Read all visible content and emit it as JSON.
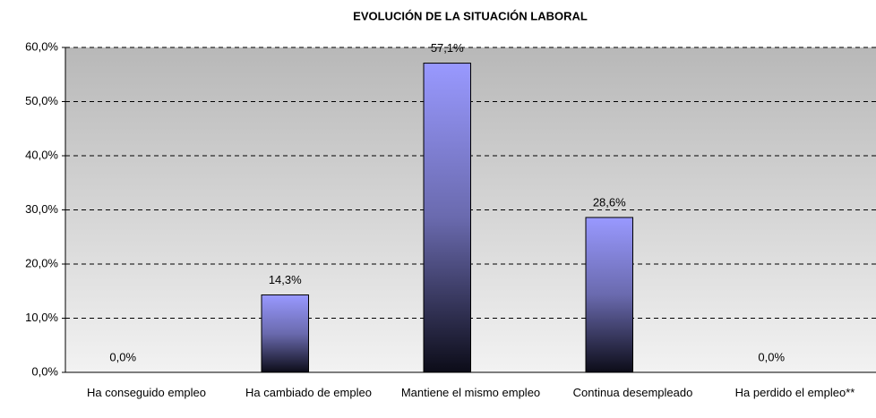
{
  "chart_data": {
    "type": "bar",
    "title": "EVOLUCIÓN DE LA SITUACIÓN LABORAL",
    "categories": [
      "Ha conseguido empleo",
      "Ha cambiado de empleo",
      "Mantiene el mismo empleo",
      "Continua desempleado",
      "Ha perdido el empleo**"
    ],
    "values": [
      0,
      14.3,
      57.1,
      28.6,
      0
    ],
    "value_labels": [
      "0,0%",
      "14,3%",
      "57,1%",
      "28,6%",
      "0,0%"
    ],
    "color": "#9999ff",
    "ylim": [
      0,
      60
    ],
    "yticks": [
      {
        "value": 0,
        "label": "0,0%"
      },
      {
        "value": 10,
        "label": "10,0%"
      },
      {
        "value": 20,
        "label": "20,0%"
      },
      {
        "value": 30,
        "label": "30,0%"
      },
      {
        "value": 40,
        "label": "40,0%"
      },
      {
        "value": 50,
        "label": "50,0%"
      },
      {
        "value": 60,
        "label": "60,0%"
      }
    ],
    "grid": true
  }
}
